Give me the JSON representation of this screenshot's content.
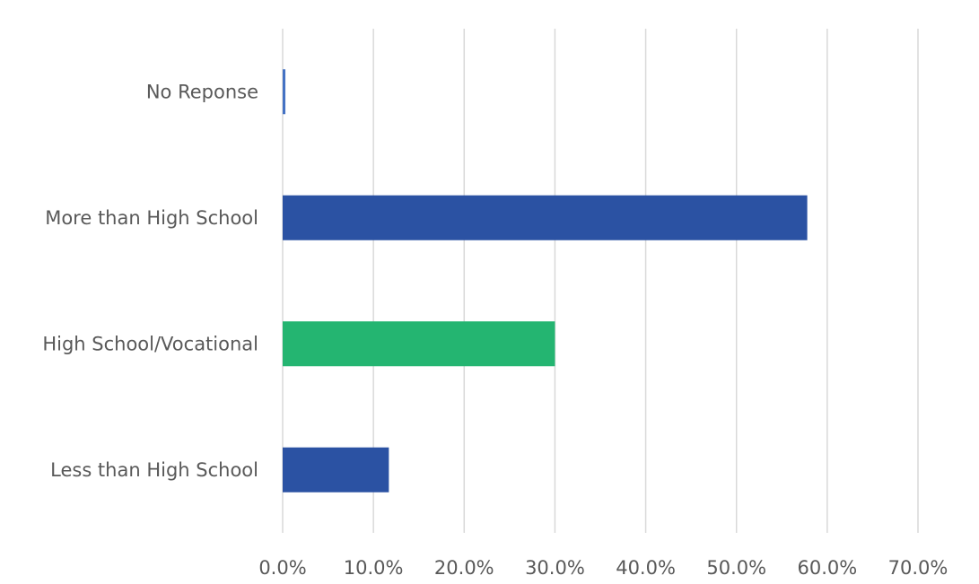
{
  "chart_data": {
    "type": "bar",
    "orientation": "horizontal",
    "title": "",
    "xlabel": "",
    "ylabel": "",
    "categories": [
      "No Reponse",
      "More than High School",
      "High School/Vocational",
      "Less than High School"
    ],
    "values": [
      0.3,
      57.8,
      30.0,
      11.7
    ],
    "bar_colors": [
      "#4472c4",
      "#2b52a3",
      "#24b571",
      "#2b52a3"
    ],
    "xlim": [
      0,
      70
    ],
    "xticks": [
      0,
      10,
      20,
      30,
      40,
      50,
      60,
      70
    ],
    "tick_labels": [
      "0.0%",
      "10.0%",
      "20.0%",
      "30.0%",
      "40.0%",
      "50.0%",
      "60.0%",
      "70.0%"
    ],
    "grid": true,
    "legend": "none"
  }
}
